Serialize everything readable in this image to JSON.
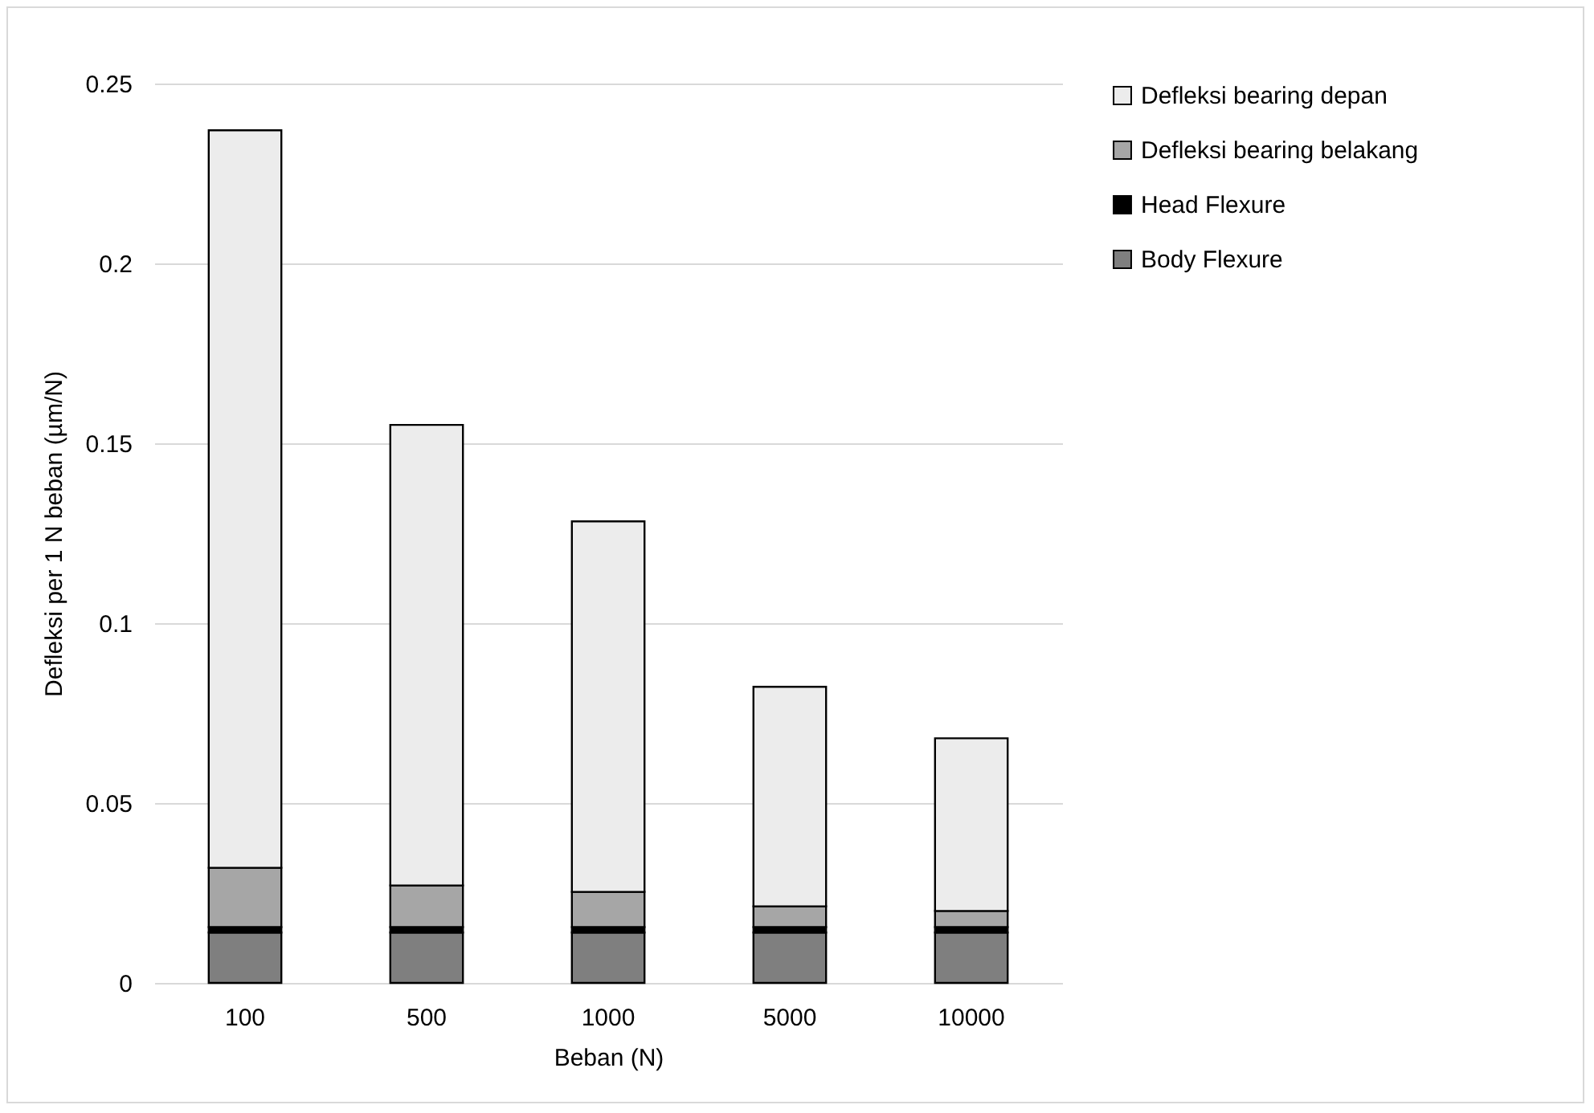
{
  "chart_data": {
    "type": "bar",
    "stacked": true,
    "xlabel": "Beban (N)",
    "ylabel": "Defleksi per 1 N beban (µm/N)",
    "categories": [
      "100",
      "500",
      "1000",
      "5000",
      "10000"
    ],
    "series": [
      {
        "name": "Body Flexure",
        "color": "#7f7f7f",
        "values": [
          0.014,
          0.014,
          0.014,
          0.014,
          0.014
        ]
      },
      {
        "name": "Head Flexure",
        "color": "#000000",
        "values": [
          0.0015,
          0.0015,
          0.0015,
          0.0015,
          0.0015
        ]
      },
      {
        "name": "Defleksi bearing belakang",
        "color": "#a6a6a6",
        "values": [
          0.0165,
          0.0116,
          0.0098,
          0.0058,
          0.0045
        ]
      },
      {
        "name": "Defleksi bearing depan",
        "color": "#ececec",
        "values": [
          0.205,
          0.128,
          0.103,
          0.061,
          0.048
        ]
      }
    ],
    "ylim": [
      0,
      0.25
    ],
    "yticks": [
      0,
      0.05,
      0.1,
      0.15,
      0.2,
      0.25
    ],
    "grid": "y",
    "legend": "right"
  }
}
